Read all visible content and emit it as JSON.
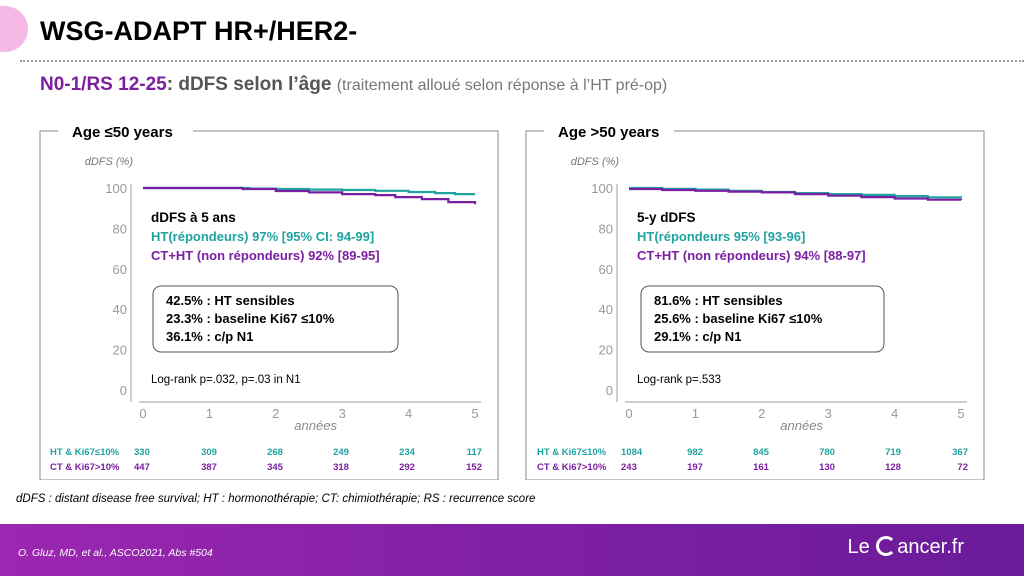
{
  "slide": {
    "title": "WSG-ADAPT HR+/HER2-",
    "subtitle_part1": "N0-1/RS 12-25",
    "subtitle_part2": ": dDFS selon l’âge",
    "subtitle_part3": "(traitement alloué selon réponse à l’HT pré-op)",
    "footnote": "dDFS : distant disease free survival; HT : hormonothérapie; CT: chimiothérapie; RS : recurrence score",
    "reference": "O. Gluz, MD, et al.,  ASCO2021, Abs #504",
    "logo_left": "Le",
    "logo_right": "ancer.fr",
    "logo_icon": "c-circle-icon"
  },
  "colors": {
    "teal": "#1fa3a0",
    "purple": "#7b1fa2",
    "footer": "#8e24aa",
    "decor_circle": "#f6b8e4"
  },
  "chart_data": [
    {
      "type": "line",
      "title": "Age ≤50 years",
      "xlabel": "années",
      "ylabel": "dDFS (%)",
      "xlim": [
        0,
        5
      ],
      "ylim": [
        0,
        100
      ],
      "x_ticks": [
        "0",
        "1",
        "2",
        "3",
        "4",
        "5"
      ],
      "y_ticks": [
        "0",
        "20",
        "40",
        "60",
        "80",
        "100"
      ],
      "series": [
        {
          "name": "HT(répondeurs)",
          "color": "#1fa3a0",
          "x": [
            0,
            1.0,
            1.6,
            2.0,
            2.5,
            3.0,
            3.5,
            4.0,
            4.4,
            4.7,
            5.0
          ],
          "y": [
            100,
            100,
            99.7,
            99.5,
            99.2,
            99.0,
            98.6,
            98.0,
            97.5,
            97.0,
            97.0
          ]
        },
        {
          "name": "CT+HT (non répondeurs)",
          "color": "#7b1fa2",
          "x": [
            0,
            1.0,
            1.5,
            2.0,
            2.5,
            3.0,
            3.5,
            3.8,
            4.2,
            4.6,
            5.0
          ],
          "y": [
            100,
            100,
            99.5,
            98.5,
            97.8,
            97.0,
            96.5,
            95.5,
            94.5,
            93.0,
            92.0
          ]
        }
      ],
      "annotation": {
        "heading": "dDFS à 5 ans",
        "line_teal": "HT(répondeurs) 97% [95% CI: 94-99]",
        "line_purple": "CT+HT (non répondeurs) 92% [89-95]",
        "box_lines": [
          "42.5% : HT sensibles",
          "23.3% : baseline Ki67 ≤10%",
          "36.1% : c/p N1"
        ],
        "logrank": "Log-rank p=.032, p=.03 in N1"
      },
      "risk_table": {
        "rows": [
          {
            "label": "HT & Ki67≤10%",
            "color": "#1fa3a0",
            "values": [
              "330",
              "309",
              "268",
              "249",
              "234",
              "117"
            ]
          },
          {
            "label": "CT & Ki67>10%",
            "color": "#7b1fa2",
            "values": [
              "447",
              "387",
              "345",
              "318",
              "292",
              "152"
            ]
          }
        ]
      }
    },
    {
      "type": "line",
      "title": "Age >50 years",
      "xlabel": "années",
      "ylabel": "dDFS (%)",
      "xlim": [
        0,
        5
      ],
      "ylim": [
        0,
        100
      ],
      "x_ticks": [
        "0",
        "1",
        "2",
        "3",
        "4",
        "5"
      ],
      "y_ticks": [
        "0",
        "20",
        "40",
        "60",
        "80",
        "100"
      ],
      "series": [
        {
          "name": "HT(répondeurs",
          "color": "#1fa3a0",
          "x": [
            0,
            0.5,
            1.0,
            1.5,
            2.0,
            2.5,
            3.0,
            3.5,
            4.0,
            4.5,
            5.0
          ],
          "y": [
            100,
            99.6,
            99.2,
            98.6,
            98.0,
            97.5,
            97.0,
            96.6,
            96.0,
            95.4,
            95.0
          ]
        },
        {
          "name": "CT+HT (non répondeurs)",
          "color": "#7b1fa2",
          "x": [
            0,
            0.5,
            1.0,
            1.5,
            2.0,
            2.5,
            3.0,
            3.5,
            4.0,
            4.5,
            5.0
          ],
          "y": [
            99.5,
            99.0,
            98.6,
            98.2,
            97.8,
            97.0,
            96.2,
            95.5,
            94.8,
            94.2,
            94.0
          ]
        }
      ],
      "annotation": {
        "heading": "5-y dDFS",
        "line_teal": "HT(répondeurs 95% [93-96]",
        "line_purple": "CT+HT (non répondeurs) 94% [88-97]",
        "box_lines": [
          "81.6% : HT sensibles",
          "25.6% : baseline Ki67 ≤10%",
          "29.1% : c/p N1"
        ],
        "logrank": "Log-rank p=.533"
      },
      "risk_table": {
        "rows": [
          {
            "label": "HT & Ki67≤10%",
            "color": "#1fa3a0",
            "values": [
              "1084",
              "982",
              "845",
              "780",
              "719",
              "367"
            ]
          },
          {
            "label": "CT & Ki67>10%",
            "color": "#7b1fa2",
            "values": [
              "243",
              "197",
              "161",
              "130",
              "128",
              "72"
            ]
          }
        ]
      }
    }
  ]
}
